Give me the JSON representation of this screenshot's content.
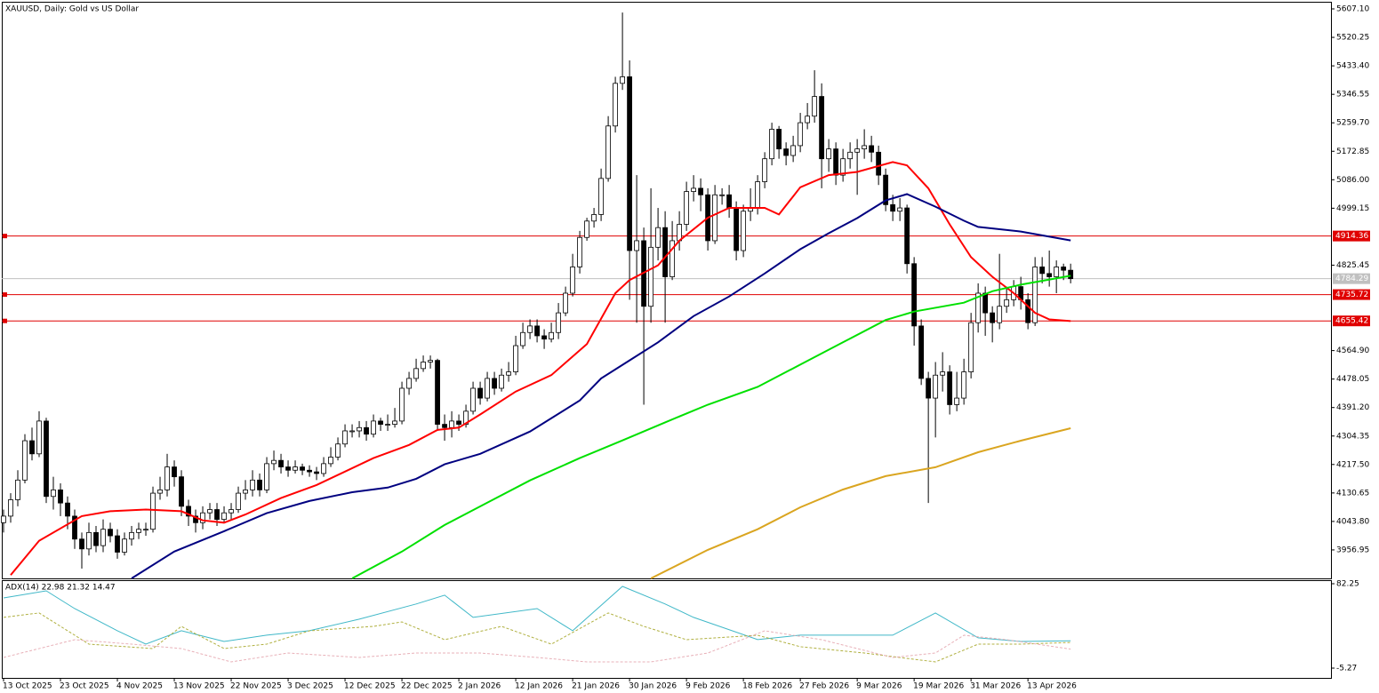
{
  "chart_data": [
    {
      "type": "candlestick",
      "title": "XAUUSD, Daily:  Gold vs US Dollar",
      "xlim": [
        -0.25,
        186.6
      ],
      "ylim": [
        3872.8,
        5626.1
      ],
      "yticks": [
        {
          "value": 5607.1,
          "label": "5607.10"
        },
        {
          "value": 5520.25,
          "label": "5520.25"
        },
        {
          "value": 5433.4,
          "label": "5433.40"
        },
        {
          "value": 5346.55,
          "label": "5346.55"
        },
        {
          "value": 5259.7,
          "label": "5259.70"
        },
        {
          "value": 5172.85,
          "label": "5172.85"
        },
        {
          "value": 5086,
          "label": "5086.00"
        },
        {
          "value": 4999.15,
          "label": "4999.15"
        },
        {
          "value": 4825.45,
          "label": "4825.45"
        },
        {
          "value": 4564.9,
          "label": "4564.90"
        },
        {
          "value": 4478.05,
          "label": "4478.05"
        },
        {
          "value": 4391.2,
          "label": "4391.20"
        },
        {
          "value": 4304.35,
          "label": "4304.35"
        },
        {
          "value": 4217.5,
          "label": "4217.50"
        },
        {
          "value": 4130.65,
          "label": "4130.65"
        },
        {
          "value": 4043.8,
          "label": "4043.80"
        },
        {
          "value": 3956.95,
          "label": "3956.95"
        }
      ],
      "xticks": [
        {
          "value": 0,
          "label": "13 Oct 2025"
        },
        {
          "value": 8,
          "label": "23 Oct 2025"
        },
        {
          "value": 16,
          "label": "4 Nov 2025"
        },
        {
          "value": 24,
          "label": "13 Nov 2025"
        },
        {
          "value": 32,
          "label": "22 Nov 2025"
        },
        {
          "value": 40,
          "label": "3 Dec 2025"
        },
        {
          "value": 48,
          "label": "12 Dec 2025"
        },
        {
          "value": 56,
          "label": "22 Dec 2025"
        },
        {
          "value": 64,
          "label": "2 Jan 2026"
        },
        {
          "value": 72,
          "label": "12 Jan 2026"
        },
        {
          "value": 80,
          "label": "21 Jan 2026"
        },
        {
          "value": 88,
          "label": "30 Jan 2026"
        },
        {
          "value": 96,
          "label": "9 Feb 2026"
        },
        {
          "value": 104,
          "label": "18 Feb 2026"
        },
        {
          "value": 112,
          "label": "27 Feb 2026"
        },
        {
          "value": 120,
          "label": "9 Mar 2026"
        },
        {
          "value": 128,
          "label": "19 Mar 2026"
        },
        {
          "value": 136,
          "label": "31 Mar 2026"
        },
        {
          "value": 144,
          "label": "13 Apr 2026"
        }
      ],
      "up_color": "#ffffff",
      "down_color": "#000000",
      "open": [
        4040,
        4060,
        4110,
        4170,
        4290,
        4250,
        4350,
        4120,
        4140,
        4100,
        4060,
        3990,
        3960,
        4010,
        3970,
        4020,
        4000,
        3950,
        3990,
        4010,
        4020,
        4020,
        4130,
        4140,
        4210,
        4180,
        4090,
        4060,
        4040,
        4070,
        4080,
        4050,
        4070,
        4080,
        4130,
        4140,
        4170,
        4140,
        4220,
        4230,
        4210,
        4200,
        4210,
        4200,
        4195,
        4190,
        4220,
        4240,
        4280,
        4320,
        4320,
        4330,
        4310,
        4350,
        4340,
        4340,
        4350,
        4450,
        4480,
        4510,
        4530,
        4535,
        4340,
        4330,
        4350,
        4340,
        4380,
        4450,
        4420,
        4480,
        4450,
        4490,
        4500,
        4580,
        4620,
        4640,
        4610,
        4600,
        4620,
        4680,
        4740,
        4820,
        4910,
        4960,
        4980,
        5090,
        5250,
        5380,
        5400,
        4870,
        4900,
        4700,
        4880,
        4940,
        4790,
        4900,
        4950,
        5050,
        5060,
        5040,
        4900,
        5040,
        5040,
        5000,
        4870,
        4990,
        5000,
        5080,
        5150,
        5240,
        5180,
        5160,
        5190,
        5260,
        5280,
        5340,
        5150,
        5180,
        5100,
        5150,
        5170,
        5180,
        5190,
        5170,
        5100,
        5010,
        4990,
        5000,
        4830,
        4640,
        4480,
        4420,
        4490,
        4500,
        4400,
        4420,
        4500,
        4650,
        4740,
        4680,
        4650,
        4700,
        4720,
        4760,
        4720,
        4650,
        4820,
        4800,
        4790,
        4820,
        4810
      ],
      "high": [
        4080,
        4130,
        4200,
        4310,
        4330,
        4380,
        4360,
        4180,
        4160,
        4120,
        4080,
        4010,
        4040,
        4030,
        4050,
        4040,
        4020,
        4010,
        4030,
        4040,
        4040,
        4150,
        4180,
        4250,
        4230,
        4200,
        4110,
        4080,
        4090,
        4100,
        4100,
        4090,
        4100,
        4150,
        4170,
        4200,
        4190,
        4240,
        4260,
        4250,
        4230,
        4230,
        4220,
        4215,
        4210,
        4240,
        4270,
        4300,
        4340,
        4340,
        4350,
        4350,
        4370,
        4360,
        4370,
        4390,
        4470,
        4500,
        4540,
        4550,
        4550,
        4540,
        4370,
        4380,
        4370,
        4400,
        4470,
        4470,
        4500,
        4500,
        4510,
        4530,
        4610,
        4650,
        4660,
        4660,
        4630,
        4650,
        4710,
        4760,
        4860,
        4930,
        4970,
        5000,
        5120,
        5280,
        5400,
        5596,
        5450,
        5100,
        4940,
        5060,
        5000,
        4990,
        4960,
        4990,
        5080,
        5100,
        5090,
        5060,
        5070,
        5060,
        5070,
        5020,
        5010,
        5060,
        5100,
        5170,
        5260,
        5250,
        5200,
        5220,
        5290,
        5320,
        5420,
        5380,
        5210,
        5200,
        5180,
        5200,
        5210,
        5240,
        5220,
        5190,
        5120,
        5040,
        5030,
        5010,
        4850,
        4660,
        4500,
        4530,
        4560,
        4520,
        4500,
        4540,
        4680,
        4770,
        4760,
        4700,
        4860,
        4760,
        4780,
        4790,
        4740,
        4850,
        4850,
        4870,
        4840,
        4830,
        4830
      ],
      "low": [
        4010,
        4040,
        4090,
        4160,
        4230,
        4240,
        4100,
        4080,
        4060,
        4020,
        3960,
        3900,
        3940,
        3950,
        3950,
        3980,
        3930,
        3940,
        3970,
        3990,
        4000,
        4010,
        4110,
        4120,
        4150,
        4060,
        4030,
        4010,
        4020,
        4050,
        4030,
        4040,
        4050,
        4070,
        4110,
        4120,
        4120,
        4130,
        4200,
        4190,
        4180,
        4190,
        4185,
        4180,
        4170,
        4180,
        4210,
        4230,
        4270,
        4300,
        4300,
        4290,
        4300,
        4320,
        4320,
        4330,
        4340,
        4430,
        4470,
        4500,
        4510,
        4320,
        4290,
        4300,
        4320,
        4330,
        4370,
        4400,
        4410,
        4430,
        4440,
        4470,
        4490,
        4570,
        4600,
        4590,
        4570,
        4590,
        4600,
        4670,
        4730,
        4800,
        4900,
        4940,
        4960,
        5080,
        5230,
        5360,
        4720,
        4650,
        4400,
        4650,
        4840,
        4650,
        4780,
        4870,
        4930,
        5020,
        4990,
        4870,
        4890,
        5010,
        4970,
        4840,
        4850,
        4960,
        4980,
        5060,
        5130,
        5150,
        5130,
        5140,
        5170,
        5240,
        5260,
        5060,
        5110,
        5070,
        5080,
        5120,
        5040,
        5150,
        5140,
        5070,
        4990,
        4960,
        4960,
        4800,
        4580,
        4460,
        4100,
        4300,
        4440,
        4370,
        4380,
        4400,
        4480,
        4620,
        4610,
        4590,
        4630,
        4680,
        4700,
        4690,
        4630,
        4640,
        4770,
        4760,
        4740,
        4780,
        4770
      ],
      "close": [
        4060,
        4110,
        4170,
        4290,
        4250,
        4350,
        4120,
        4140,
        4100,
        4060,
        3990,
        3960,
        4010,
        3970,
        4020,
        4000,
        3950,
        3990,
        4010,
        4020,
        4020,
        4130,
        4140,
        4210,
        4180,
        4090,
        4060,
        4040,
        4070,
        4080,
        4050,
        4070,
        4080,
        4130,
        4140,
        4170,
        4140,
        4220,
        4230,
        4210,
        4200,
        4210,
        4200,
        4195,
        4190,
        4220,
        4240,
        4280,
        4320,
        4320,
        4330,
        4310,
        4350,
        4340,
        4340,
        4350,
        4450,
        4480,
        4510,
        4530,
        4535,
        4340,
        4330,
        4350,
        4340,
        4380,
        4450,
        4420,
        4480,
        4450,
        4490,
        4500,
        4580,
        4620,
        4640,
        4610,
        4600,
        4620,
        4680,
        4740,
        4820,
        4910,
        4960,
        4980,
        5090,
        5250,
        5380,
        5400,
        4870,
        4900,
        4700,
        4880,
        4940,
        4790,
        4900,
        4950,
        5050,
        5060,
        5040,
        4900,
        5040,
        5040,
        5000,
        4870,
        4990,
        5000,
        5080,
        5150,
        5240,
        5180,
        5160,
        5190,
        5260,
        5280,
        5340,
        5150,
        5180,
        5100,
        5150,
        5170,
        5180,
        5190,
        5170,
        5100,
        5010,
        4990,
        5000,
        4830,
        4640,
        4480,
        4420,
        4490,
        4500,
        4400,
        4420,
        4500,
        4650,
        4740,
        4680,
        4650,
        4700,
        4720,
        4760,
        4720,
        4650,
        4820,
        4800,
        4790,
        4820,
        4810,
        4784.29
      ],
      "lines": [
        {
          "color": "#ff0000",
          "x": [
            1,
            5,
            11,
            15,
            20,
            25,
            28,
            31,
            34,
            39,
            44,
            52,
            57,
            61,
            64,
            67,
            72,
            77,
            82,
            86,
            88,
            92,
            95,
            99,
            102,
            107,
            109,
            112,
            116,
            120,
            125,
            127,
            130,
            133,
            136,
            139,
            142,
            145,
            147,
            150
          ],
          "values": [
            3880,
            3985,
            4060,
            4075,
            4080,
            4075,
            4047,
            4040,
            4065,
            4115,
            4155,
            4237,
            4277,
            4323,
            4330,
            4370,
            4440,
            4490,
            4585,
            4740,
            4780,
            4825,
            4900,
            4970,
            5000,
            5000,
            4980,
            5063,
            5100,
            5110,
            5140,
            5130,
            5060,
            4950,
            4850,
            4790,
            4740,
            4680,
            4660,
            4655
          ]
        },
        {
          "color": "#000080",
          "x": [
            18,
            24,
            31,
            37,
            43,
            49,
            54,
            58,
            62,
            67,
            74,
            81,
            84,
            88,
            92,
            97,
            102,
            107,
            112,
            116,
            120,
            124,
            127,
            131,
            135,
            137,
            143,
            150
          ],
          "values": [
            3870,
            3952,
            4014,
            4069,
            4106,
            4133,
            4147,
            4174,
            4218,
            4250,
            4318,
            4413,
            4480,
            4535,
            4590,
            4670,
            4730,
            4800,
            4874,
            4923,
            4969,
            5023,
            5042,
            5004,
            4961,
            4942,
            4928,
            4901
          ]
        },
        {
          "color": "#00e000",
          "x": [
            49,
            56,
            62,
            68,
            74,
            81,
            87,
            93,
            99,
            106,
            112,
            118,
            124,
            128,
            135,
            139,
            143,
            150
          ],
          "values": [
            3870,
            3952,
            4033,
            4101,
            4169,
            4237,
            4291,
            4346,
            4400,
            4454,
            4522,
            4590,
            4658,
            4684,
            4711,
            4746,
            4766,
            4793
          ]
        },
        {
          "color": "#daa520",
          "x": [
            91,
            99,
            106,
            112,
            118,
            124,
            131,
            137,
            143,
            150
          ],
          "values": [
            3870,
            3957,
            4020,
            4087,
            4141,
            4182,
            4209,
            4255,
            4290,
            4328
          ]
        }
      ],
      "levels": [
        {
          "value": 4914.36,
          "color": "#e00000"
        },
        {
          "value": 4735.72,
          "color": "#e00000"
        },
        {
          "value": 4655.42,
          "color": "#e00000"
        }
      ],
      "last_price": {
        "value": 4784.29,
        "color": "#c0c0c0"
      }
    },
    {
      "type": "line",
      "title": "ADX(14) 22.98 21.32 14.47",
      "ylim": [
        -5.27,
        82.25
      ],
      "yticks": [
        82.25,
        -5.27
      ],
      "series": [
        {
          "color": "#40b8c8",
          "dashed": false,
          "x": [
            0,
            6,
            10,
            16,
            20,
            25,
            31,
            37,
            43,
            50,
            58,
            62,
            66,
            75,
            80,
            87,
            93,
            97,
            106,
            112,
            125,
            131,
            137,
            143,
            150
          ],
          "values": [
            67.5,
            74.9,
            56.5,
            33.5,
            19.6,
            33.5,
            22.4,
            28.9,
            33.5,
            45.5,
            61.2,
            70.4,
            47.3,
            56.5,
            33.5,
            79.5,
            61.2,
            47.3,
            24.3,
            28.9,
            28.9,
            51.9,
            26.1,
            22.4,
            22.98
          ]
        },
        {
          "color": "#b0b040",
          "dashed": true,
          "x": [
            0,
            5,
            12,
            21,
            25,
            31,
            37,
            43,
            52,
            56,
            62,
            70,
            77,
            85,
            90,
            96,
            106,
            112,
            121,
            131,
            137,
            143,
            150
          ],
          "values": [
            47.3,
            51.9,
            19.6,
            15.0,
            38.0,
            15.0,
            19.6,
            33.4,
            38.0,
            42.6,
            24.2,
            38.0,
            19.6,
            51.9,
            38.0,
            24.2,
            28.8,
            16.9,
            10.4,
            1.2,
            19.6,
            19.6,
            21.32
          ]
        },
        {
          "color": "#e8b0b8",
          "dashed": true,
          "x": [
            0,
            10,
            18,
            25,
            32,
            40,
            50,
            58,
            67,
            75,
            82,
            91,
            99,
            107,
            115,
            125,
            131,
            135,
            141,
            150
          ],
          "values": [
            5.8,
            24.2,
            19.6,
            15.0,
            1.2,
            10.4,
            5.8,
            10.4,
            10.4,
            5.8,
            1.2,
            1.2,
            10.4,
            33.4,
            24.2,
            5.8,
            10.4,
            28.8,
            24.2,
            14.47
          ]
        }
      ]
    }
  ]
}
